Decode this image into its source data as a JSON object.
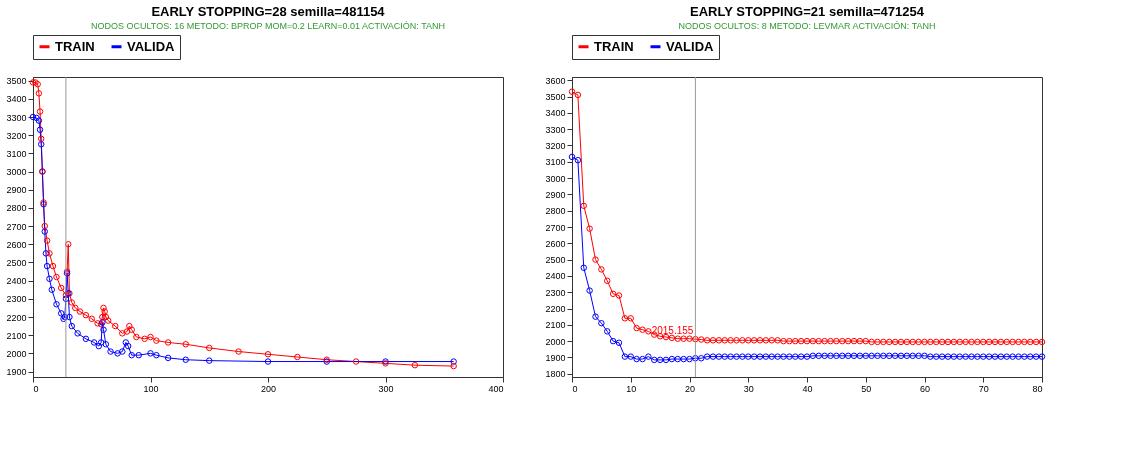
{
  "chart_data": [
    {
      "type": "line",
      "title": "EARLY STOPPING=28          semilla=481154",
      "subtitle": "NODOS OCULTOS: 16   METODO: BPROP MOM=0.2 LEARN=0.01 ACTIVACIÓN: TANH",
      "legend": "top",
      "marker": "circle",
      "xlim": [
        0,
        400
      ],
      "xticks": [
        0,
        100,
        200,
        300,
        400
      ],
      "ylim": [
        1870,
        3520
      ],
      "yticks": [
        1900,
        2000,
        2100,
        2200,
        2300,
        2400,
        2500,
        2600,
        2700,
        2800,
        2900,
        3000,
        3100,
        3200,
        3300,
        3400,
        3500
      ],
      "ref_lines": [
        {
          "axis": "x",
          "value": 28,
          "color": "#999999"
        }
      ],
      "series": [
        {
          "name": "TRAIN",
          "color": "#ff0000",
          "x": [
            0,
            2,
            4,
            5,
            6,
            7,
            8,
            9,
            10,
            12,
            14,
            17,
            20,
            24,
            28,
            29,
            30,
            31,
            33,
            36,
            40,
            45,
            50,
            55,
            58,
            59,
            60,
            61,
            62,
            64,
            70,
            76,
            80,
            82,
            84,
            88,
            95,
            100,
            105,
            115,
            130,
            150,
            175,
            200,
            225,
            250,
            275,
            300,
            325,
            358
          ],
          "values": [
            3490,
            3490,
            3480,
            3430,
            3330,
            3180,
            3000,
            2830,
            2700,
            2620,
            2550,
            2480,
            2420,
            2360,
            2320,
            2450,
            2600,
            2330,
            2280,
            2250,
            2230,
            2210,
            2190,
            2165,
            2160,
            2200,
            2250,
            2230,
            2200,
            2180,
            2150,
            2110,
            2120,
            2150,
            2130,
            2090,
            2080,
            2090,
            2070,
            2060,
            2050,
            2030,
            2010,
            1995,
            1980,
            1965,
            1955,
            1945,
            1935,
            1930
          ]
        },
        {
          "name": "VALIDA",
          "color": "#0000ff",
          "x": [
            0,
            3,
            5,
            6,
            7,
            8,
            9,
            10,
            11,
            12,
            14,
            16,
            20,
            24,
            26,
            27,
            28,
            29,
            30,
            31,
            33,
            38,
            45,
            52,
            56,
            58,
            59,
            60,
            62,
            66,
            72,
            76,
            79,
            81,
            84,
            90,
            100,
            105,
            115,
            130,
            150,
            200,
            250,
            300,
            358
          ],
          "values": [
            3300,
            3295,
            3280,
            3230,
            3150,
            3000,
            2820,
            2670,
            2550,
            2480,
            2410,
            2350,
            2270,
            2220,
            2190,
            2200,
            2300,
            2440,
            2330,
            2200,
            2150,
            2110,
            2080,
            2060,
            2040,
            2060,
            2170,
            2130,
            2050,
            2010,
            2000,
            2010,
            2060,
            2040,
            1990,
            1990,
            2000,
            1990,
            1975,
            1965,
            1960,
            1955,
            1955,
            1955,
            1955
          ]
        }
      ]
    },
    {
      "type": "line",
      "title": "EARLY STOPPING=21          semilla=471254",
      "subtitle": "NODOS OCULTOS: 8   METODO: LEVMAR ACTIVACIÓN: TANH",
      "legend": "top",
      "marker": "circle",
      "xlim": [
        0,
        80
      ],
      "xticks": [
        0,
        10,
        20,
        30,
        40,
        50,
        60,
        70,
        80
      ],
      "ylim": [
        1780,
        3620
      ],
      "yticks": [
        1800,
        1900,
        2000,
        2100,
        2200,
        2300,
        2400,
        2500,
        2600,
        2700,
        2800,
        2900,
        3000,
        3100,
        3200,
        3300,
        3400,
        3500,
        3600
      ],
      "ref_lines": [
        {
          "axis": "x",
          "value": 21,
          "color": "#999999"
        }
      ],
      "annotations": [
        {
          "text": "2015.155",
          "x": 21,
          "y": 2015
        }
      ],
      "x": [
        0,
        1,
        2,
        3,
        4,
        5,
        6,
        7,
        8,
        9,
        10,
        11,
        12,
        13,
        14,
        15,
        16,
        17,
        18,
        19,
        20,
        21,
        22,
        23,
        24,
        25,
        26,
        27,
        28,
        29,
        30,
        31,
        32,
        33,
        34,
        35,
        36,
        37,
        38,
        39,
        40,
        41,
        42,
        43,
        44,
        45,
        46,
        47,
        48,
        49,
        50,
        51,
        52,
        53,
        54,
        55,
        56,
        57,
        58,
        59,
        60,
        61,
        62,
        63,
        64,
        65,
        66,
        67,
        68,
        69,
        70,
        71,
        72,
        73,
        74,
        75,
        76,
        77,
        78,
        79,
        80
      ],
      "series": [
        {
          "name": "TRAIN",
          "color": "#ff0000",
          "values": [
            3530,
            3510,
            2830,
            2690,
            2500,
            2440,
            2370,
            2290,
            2280,
            2140,
            2140,
            2080,
            2070,
            2060,
            2040,
            2030,
            2025,
            2020,
            2015,
            2015,
            2015,
            2012,
            2010,
            2005,
            2005,
            2005,
            2005,
            2005,
            2005,
            2005,
            2005,
            2005,
            2005,
            2005,
            2005,
            2005,
            2000,
            2000,
            2000,
            2000,
            2000,
            2000,
            2000,
            2000,
            2000,
            2000,
            2000,
            2000,
            2000,
            2000,
            2000,
            1995,
            1995,
            1995,
            1995,
            1995,
            1995,
            1995,
            1995,
            1995,
            1995,
            1995,
            1995,
            1995,
            1995,
            1995,
            1995,
            1995,
            1995,
            1995,
            1995,
            1995,
            1995,
            1995,
            1995,
            1995,
            1995,
            1995,
            1995,
            1995,
            1995
          ]
        },
        {
          "name": "VALIDA",
          "color": "#0000ff",
          "values": [
            3130,
            3110,
            2450,
            2310,
            2150,
            2110,
            2060,
            2000,
            1990,
            1905,
            1905,
            1890,
            1890,
            1905,
            1885,
            1885,
            1885,
            1890,
            1890,
            1890,
            1890,
            1895,
            1895,
            1905,
            1905,
            1905,
            1905,
            1905,
            1905,
            1905,
            1905,
            1905,
            1905,
            1905,
            1905,
            1905,
            1905,
            1905,
            1905,
            1905,
            1905,
            1910,
            1910,
            1910,
            1910,
            1910,
            1910,
            1910,
            1910,
            1910,
            1910,
            1910,
            1910,
            1910,
            1910,
            1910,
            1910,
            1910,
            1910,
            1910,
            1910,
            1905,
            1905,
            1905,
            1905,
            1905,
            1905,
            1905,
            1905,
            1905,
            1905,
            1905,
            1905,
            1905,
            1905,
            1905,
            1905,
            1905,
            1905,
            1905,
            1905
          ]
        }
      ]
    }
  ]
}
